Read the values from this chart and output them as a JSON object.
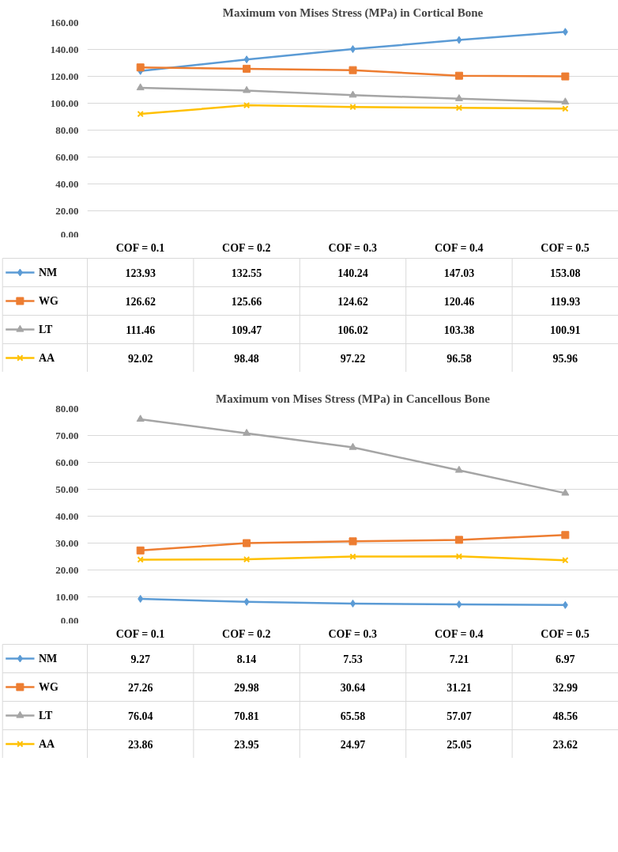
{
  "chart_data": [
    {
      "type": "line",
      "title": "Maximum von Mises Stress (MPa) in Cortical Bone",
      "categories": [
        "COF = 0.1",
        "COF = 0.2",
        "COF = 0.3",
        "COF = 0.4",
        "COF = 0.5"
      ],
      "series": [
        {
          "name": "NM",
          "color": "#5b9bd5",
          "marker": "diamond",
          "values": [
            123.93,
            132.55,
            140.24,
            147.03,
            153.08
          ]
        },
        {
          "name": "WG",
          "color": "#ed7d31",
          "marker": "square",
          "values": [
            126.62,
            125.66,
            124.62,
            120.46,
            119.93
          ]
        },
        {
          "name": "LT",
          "color": "#a5a5a5",
          "marker": "triangle",
          "values": [
            111.46,
            109.47,
            106.02,
            103.38,
            100.91
          ]
        },
        {
          "name": "AA",
          "color": "#ffc000",
          "marker": "cross",
          "values": [
            92.02,
            98.48,
            97.22,
            96.58,
            95.96
          ]
        }
      ],
      "ylim": [
        0,
        160
      ],
      "yticks": [
        {
          "value": 0,
          "label": "0.00"
        },
        {
          "value": 20,
          "label": "20.00"
        },
        {
          "value": 40,
          "label": "40.00"
        },
        {
          "value": 60,
          "label": "60.00"
        },
        {
          "value": 80,
          "label": "80.00"
        },
        {
          "value": 100,
          "label": "100.00"
        },
        {
          "value": 120,
          "label": "120.00"
        },
        {
          "value": 140,
          "label": "140.00"
        },
        {
          "value": 160,
          "label": "160.00"
        }
      ],
      "grid": "y",
      "legend": "bottom",
      "data_labels": true
    },
    {
      "type": "line",
      "title": "Maximum von Mises Stress (MPa) in Cancellous Bone",
      "categories": [
        "COF = 0.1",
        "COF = 0.2",
        "COF = 0.3",
        "COF = 0.4",
        "COF = 0.5"
      ],
      "series": [
        {
          "name": "NM",
          "color": "#5b9bd5",
          "marker": "diamond",
          "values": [
            9.27,
            8.14,
            7.53,
            7.21,
            6.97
          ]
        },
        {
          "name": "WG",
          "color": "#ed7d31",
          "marker": "square",
          "values": [
            27.26,
            29.98,
            30.64,
            31.21,
            32.99
          ]
        },
        {
          "name": "LT",
          "color": "#a5a5a5",
          "marker": "triangle",
          "values": [
            76.04,
            70.81,
            65.58,
            57.07,
            48.56
          ]
        },
        {
          "name": "AA",
          "color": "#ffc000",
          "marker": "cross",
          "values": [
            23.86,
            23.95,
            24.97,
            25.05,
            23.62
          ]
        }
      ],
      "ylim": [
        0,
        80
      ],
      "yticks": [
        {
          "value": 0,
          "label": "0.00"
        },
        {
          "value": 10,
          "label": "10.00"
        },
        {
          "value": 20,
          "label": "20.00"
        },
        {
          "value": 30,
          "label": "30.00"
        },
        {
          "value": 40,
          "label": "40.00"
        },
        {
          "value": 50,
          "label": "50.00"
        },
        {
          "value": 60,
          "label": "60.00"
        },
        {
          "value": 70,
          "label": "70.00"
        },
        {
          "value": 80,
          "label": "80.00"
        }
      ],
      "grid": "y",
      "legend": "bottom",
      "data_labels": true
    }
  ]
}
